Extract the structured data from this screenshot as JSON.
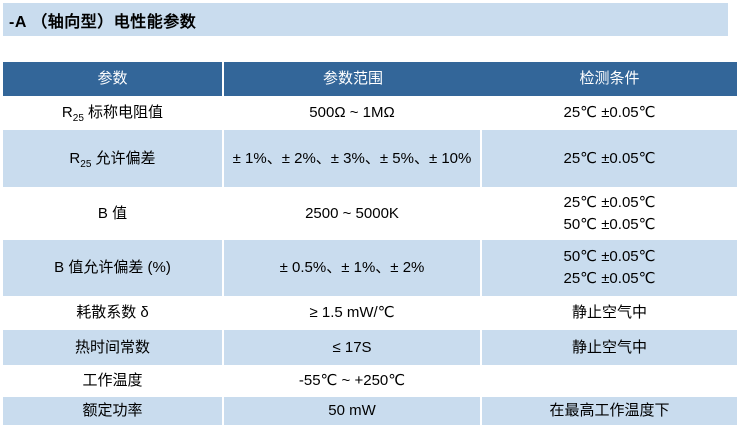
{
  "title": "-A （轴向型）电性能参数",
  "table": {
    "headers": [
      "参数",
      "参数范围",
      "检测条件"
    ],
    "rows": [
      {
        "param_pre": "R",
        "param_sub": "25",
        "param_post": " 标称电阻值",
        "range": "500Ω ~ 1MΩ",
        "cond1": "25℃ ±0.05℃",
        "cond2": ""
      },
      {
        "param_pre": "R",
        "param_sub": "25",
        "param_post": " 允许偏差",
        "range": "± 1%、± 2%、± 3%、± 5%、± 10%",
        "cond1": "25℃ ±0.05℃",
        "cond2": ""
      },
      {
        "param_pre": "B 值",
        "param_sub": "",
        "param_post": "",
        "range": "2500 ~ 5000K",
        "cond1": "25℃ ±0.05℃",
        "cond2": "50℃ ±0.05℃"
      },
      {
        "param_pre": "B 值允许偏差 (%)",
        "param_sub": "",
        "param_post": "",
        "range": "± 0.5%、± 1%、± 2%",
        "cond1": "50℃ ±0.05℃",
        "cond2": "25℃ ±0.05℃"
      },
      {
        "param_pre": "耗散系数 δ",
        "param_sub": "",
        "param_post": "",
        "range": "≥ 1.5 mW/℃",
        "cond1": "静止空气中",
        "cond2": ""
      },
      {
        "param_pre": "热时间常数",
        "param_sub": "",
        "param_post": "",
        "range": "≤ 17S",
        "cond1": "静止空气中",
        "cond2": ""
      },
      {
        "param_pre": "工作温度",
        "param_sub": "",
        "param_post": "",
        "range": "-55℃ ~ +250℃",
        "cond1": "",
        "cond2": ""
      },
      {
        "param_pre": "额定功率",
        "param_sub": "",
        "param_post": "",
        "range": "50 mW",
        "cond1": "在最高工作温度下",
        "cond2": ""
      }
    ]
  },
  "colors": {
    "title_bar_bg": "#c9dcee",
    "header_bg": "#336699",
    "header_text": "#ffffff",
    "band_row_bg": "#c9dcee",
    "body_text": "#000000"
  }
}
